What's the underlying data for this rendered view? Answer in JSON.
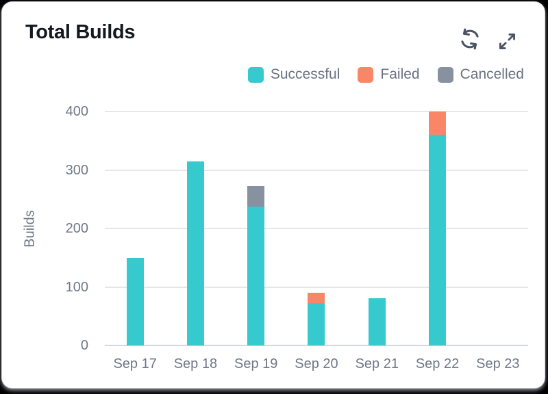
{
  "header": {
    "title": "Total Builds",
    "actions": [
      {
        "name": "refresh-icon"
      },
      {
        "name": "expand-icon"
      }
    ]
  },
  "legend": [
    {
      "label": "Successful",
      "color": "#36c9cd"
    },
    {
      "label": "Failed",
      "color": "#fa8668"
    },
    {
      "label": "Cancelled",
      "color": "#8791a0"
    }
  ],
  "chart_data": {
    "type": "bar",
    "stacked": true,
    "title": "Total Builds",
    "categories": [
      "Sep 17",
      "Sep 18",
      "Sep 19",
      "Sep 20",
      "Sep 21",
      "Sep 22",
      "Sep 23"
    ],
    "series": [
      {
        "name": "Successful",
        "color": "#36c9cd",
        "values": [
          150,
          315,
          238,
          72,
          81,
          360,
          0
        ]
      },
      {
        "name": "Failed",
        "color": "#fa8668",
        "values": [
          0,
          0,
          0,
          18,
          0,
          40,
          0
        ]
      },
      {
        "name": "Cancelled",
        "color": "#8791a0",
        "values": [
          0,
          0,
          34,
          0,
          0,
          0,
          0
        ]
      }
    ],
    "xlabel": "",
    "ylabel": "Builds",
    "ylim": [
      0,
      400
    ],
    "yticks": [
      0,
      100,
      200,
      300,
      400
    ],
    "grid": true,
    "legend_position": "top-right"
  },
  "colors": {
    "card_background": "#ffffff",
    "card_border": "#d3d6dc",
    "gridline": "#e4e6eb",
    "axis_line": "#d4d7de",
    "tick_text": "#6f7887",
    "legend_text": "#6a7382",
    "title_text": "#15191f",
    "icon": "#4b5466"
  }
}
